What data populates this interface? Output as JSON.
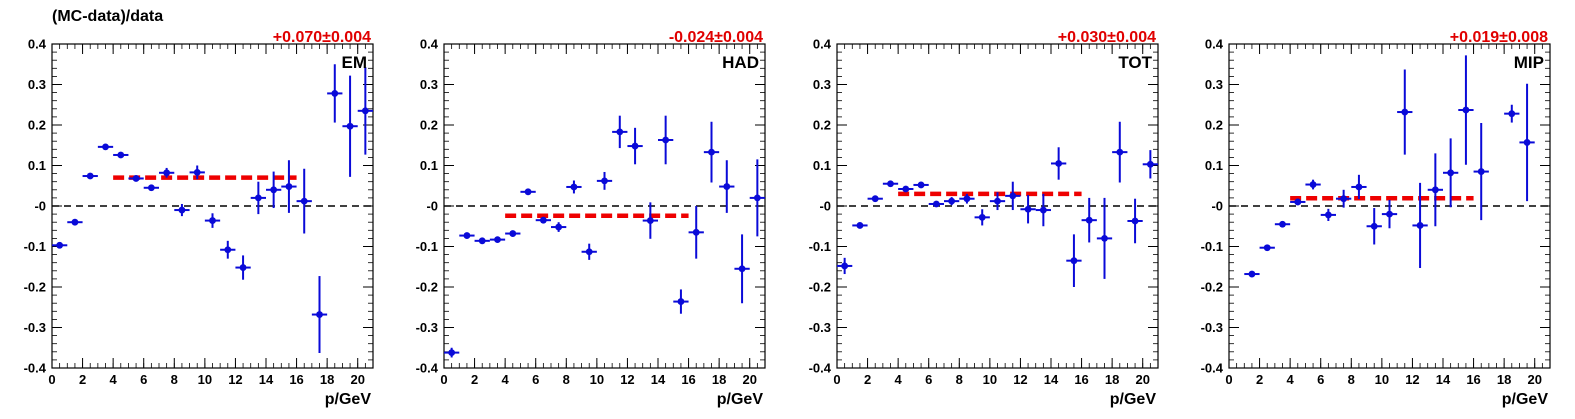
{
  "figure": {
    "ylabel": "(MC-data)/data",
    "colors": {
      "points": "#0a0ad8",
      "fit": "#ee0000",
      "zero_line": "#000000",
      "frame": "#000000"
    }
  },
  "chart_data": [
    {
      "type": "scatter",
      "label": "EM",
      "fit_label": "+0.070±0.004",
      "fit": {
        "value": 0.07,
        "xrange": [
          4,
          16
        ]
      },
      "xlabel": "p/GeV",
      "xlim": [
        0,
        21
      ],
      "ylim": [
        -0.4,
        0.4
      ],
      "xticks": [
        0,
        2,
        4,
        6,
        8,
        10,
        12,
        14,
        16,
        18,
        20
      ],
      "yticks": [
        -0.4,
        -0.3,
        -0.2,
        -0.1,
        0,
        0.1,
        0.2,
        0.3,
        0.4
      ],
      "ytick_labels": [
        "-0.4",
        "-0.3",
        "-0.2",
        "-0.1",
        "-0",
        "0.1",
        "0.2",
        "0.3",
        "0.4"
      ],
      "points": [
        {
          "x": 0.5,
          "y": -0.097,
          "err": 0.008
        },
        {
          "x": 1.5,
          "y": -0.04,
          "err": 0.006
        },
        {
          "x": 2.5,
          "y": 0.074,
          "err": 0.006
        },
        {
          "x": 3.5,
          "y": 0.146,
          "err": 0.005
        },
        {
          "x": 4.5,
          "y": 0.126,
          "err": 0.006
        },
        {
          "x": 5.5,
          "y": 0.068,
          "err": 0.007
        },
        {
          "x": 6.5,
          "y": 0.045,
          "err": 0.008
        },
        {
          "x": 7.5,
          "y": 0.082,
          "err": 0.012
        },
        {
          "x": 8.5,
          "y": -0.01,
          "err": 0.015
        },
        {
          "x": 9.5,
          "y": 0.083,
          "err": 0.017
        },
        {
          "x": 10.5,
          "y": -0.036,
          "err": 0.018
        },
        {
          "x": 11.5,
          "y": -0.108,
          "err": 0.022
        },
        {
          "x": 12.5,
          "y": -0.152,
          "err": 0.03
        },
        {
          "x": 13.5,
          "y": 0.02,
          "err": 0.04
        },
        {
          "x": 14.5,
          "y": 0.04,
          "err": 0.045
        },
        {
          "x": 15.5,
          "y": 0.048,
          "err": 0.065
        },
        {
          "x": 16.5,
          "y": 0.012,
          "err": 0.08
        },
        {
          "x": 17.5,
          "y": -0.268,
          "err": 0.095
        },
        {
          "x": 18.5,
          "y": 0.278,
          "err": 0.072
        },
        {
          "x": 19.5,
          "y": 0.197,
          "err": 0.125
        },
        {
          "x": 20.5,
          "y": 0.235,
          "err": 0.108
        }
      ]
    },
    {
      "type": "scatter",
      "label": "HAD",
      "fit_label": "-0.024±0.004",
      "fit": {
        "value": -0.024,
        "xrange": [
          4,
          16
        ]
      },
      "xlabel": "p/GeV",
      "xlim": [
        0,
        21
      ],
      "ylim": [
        -0.4,
        0.4
      ],
      "xticks": [
        0,
        2,
        4,
        6,
        8,
        10,
        12,
        14,
        16,
        18,
        20
      ],
      "yticks": [
        -0.4,
        -0.3,
        -0.2,
        -0.1,
        0,
        0.1,
        0.2,
        0.3,
        0.4
      ],
      "ytick_labels": [
        "-0.4",
        "-0.3",
        "-0.2",
        "-0.1",
        "-0",
        "0.1",
        "0.2",
        "0.3",
        "0.4"
      ],
      "points": [
        {
          "x": 0.5,
          "y": -0.362,
          "err": 0.012
        },
        {
          "x": 1.5,
          "y": -0.073,
          "err": 0.005
        },
        {
          "x": 2.5,
          "y": -0.086,
          "err": 0.005
        },
        {
          "x": 3.5,
          "y": -0.083,
          "err": 0.005
        },
        {
          "x": 4.5,
          "y": -0.068,
          "err": 0.006
        },
        {
          "x": 5.5,
          "y": 0.035,
          "err": 0.006
        },
        {
          "x": 6.5,
          "y": -0.035,
          "err": 0.008
        },
        {
          "x": 7.5,
          "y": -0.052,
          "err": 0.012
        },
        {
          "x": 8.5,
          "y": 0.047,
          "err": 0.016
        },
        {
          "x": 9.5,
          "y": -0.113,
          "err": 0.02
        },
        {
          "x": 10.5,
          "y": 0.062,
          "err": 0.022
        },
        {
          "x": 11.5,
          "y": 0.183,
          "err": 0.04
        },
        {
          "x": 12.5,
          "y": 0.148,
          "err": 0.045
        },
        {
          "x": 13.5,
          "y": -0.036,
          "err": 0.045
        },
        {
          "x": 14.5,
          "y": 0.163,
          "err": 0.06
        },
        {
          "x": 15.5,
          "y": -0.236,
          "err": 0.03
        },
        {
          "x": 16.5,
          "y": -0.065,
          "err": 0.065
        },
        {
          "x": 17.5,
          "y": 0.133,
          "err": 0.075
        },
        {
          "x": 18.5,
          "y": 0.048,
          "err": 0.065
        },
        {
          "x": 19.5,
          "y": -0.155,
          "err": 0.085
        },
        {
          "x": 20.5,
          "y": 0.02,
          "err": 0.095
        }
      ]
    },
    {
      "type": "scatter",
      "label": "TOT",
      "fit_label": "+0.030±0.004",
      "fit": {
        "value": 0.03,
        "xrange": [
          4,
          16
        ]
      },
      "xlabel": "p/GeV",
      "xlim": [
        0,
        21
      ],
      "ylim": [
        -0.4,
        0.4
      ],
      "xticks": [
        0,
        2,
        4,
        6,
        8,
        10,
        12,
        14,
        16,
        18,
        20
      ],
      "yticks": [
        -0.4,
        -0.3,
        -0.2,
        -0.1,
        0,
        0.1,
        0.2,
        0.3,
        0.4
      ],
      "ytick_labels": [
        "-0.4",
        "-0.3",
        "-0.2",
        "-0.1",
        "-0",
        "0.1",
        "0.2",
        "0.3",
        "0.4"
      ],
      "points": [
        {
          "x": 0.5,
          "y": -0.148,
          "err": 0.02
        },
        {
          "x": 1.5,
          "y": -0.048,
          "err": 0.007
        },
        {
          "x": 2.5,
          "y": 0.018,
          "err": 0.005
        },
        {
          "x": 3.5,
          "y": 0.055,
          "err": 0.005
        },
        {
          "x": 4.5,
          "y": 0.042,
          "err": 0.005
        },
        {
          "x": 5.5,
          "y": 0.052,
          "err": 0.006
        },
        {
          "x": 6.5,
          "y": 0.005,
          "err": 0.007
        },
        {
          "x": 7.5,
          "y": 0.012,
          "err": 0.01
        },
        {
          "x": 8.5,
          "y": 0.018,
          "err": 0.012
        },
        {
          "x": 9.5,
          "y": -0.028,
          "err": 0.02
        },
        {
          "x": 10.5,
          "y": 0.012,
          "err": 0.022
        },
        {
          "x": 11.5,
          "y": 0.025,
          "err": 0.035
        },
        {
          "x": 12.5,
          "y": -0.008,
          "err": 0.035
        },
        {
          "x": 13.5,
          "y": -0.01,
          "err": 0.04
        },
        {
          "x": 14.5,
          "y": 0.105,
          "err": 0.04
        },
        {
          "x": 15.5,
          "y": -0.135,
          "err": 0.065
        },
        {
          "x": 16.5,
          "y": -0.035,
          "err": 0.055
        },
        {
          "x": 17.5,
          "y": -0.08,
          "err": 0.1
        },
        {
          "x": 18.5,
          "y": 0.133,
          "err": 0.075
        },
        {
          "x": 19.5,
          "y": -0.037,
          "err": 0.055
        },
        {
          "x": 20.5,
          "y": 0.103,
          "err": 0.035
        }
      ]
    },
    {
      "type": "scatter",
      "label": "MIP",
      "fit_label": "+0.019±0.008",
      "fit": {
        "value": 0.019,
        "xrange": [
          4,
          16
        ]
      },
      "xlabel": "p/GeV",
      "xlim": [
        0,
        21
      ],
      "ylim": [
        -0.4,
        0.4
      ],
      "xticks": [
        0,
        2,
        4,
        6,
        8,
        10,
        12,
        14,
        16,
        18,
        20
      ],
      "yticks": [
        -0.4,
        -0.3,
        -0.2,
        -0.1,
        0,
        0.1,
        0.2,
        0.3,
        0.4
      ],
      "ytick_labels": [
        "-0.4",
        "-0.3",
        "-0.2",
        "-0.1",
        "-0",
        "0.1",
        "0.2",
        "0.3",
        "0.4"
      ],
      "points": [
        {
          "x": 1.5,
          "y": -0.168,
          "err": 0.006
        },
        {
          "x": 2.5,
          "y": -0.103,
          "err": 0.006
        },
        {
          "x": 3.5,
          "y": -0.045,
          "err": 0.008
        },
        {
          "x": 4.5,
          "y": 0.01,
          "err": 0.008
        },
        {
          "x": 5.5,
          "y": 0.053,
          "err": 0.012
        },
        {
          "x": 6.5,
          "y": -0.022,
          "err": 0.015
        },
        {
          "x": 7.5,
          "y": 0.018,
          "err": 0.022
        },
        {
          "x": 8.5,
          "y": 0.047,
          "err": 0.03
        },
        {
          "x": 9.5,
          "y": -0.05,
          "err": 0.045
        },
        {
          "x": 10.5,
          "y": -0.02,
          "err": 0.035
        },
        {
          "x": 11.5,
          "y": 0.232,
          "err": 0.105
        },
        {
          "x": 12.5,
          "y": -0.048,
          "err": 0.105
        },
        {
          "x": 13.5,
          "y": 0.04,
          "err": 0.09
        },
        {
          "x": 14.5,
          "y": 0.082,
          "err": 0.085
        },
        {
          "x": 15.5,
          "y": 0.237,
          "err": 0.135
        },
        {
          "x": 16.5,
          "y": 0.085,
          "err": 0.12
        },
        {
          "x": 18.5,
          "y": 0.228,
          "err": 0.022
        },
        {
          "x": 19.5,
          "y": 0.157,
          "err": 0.145
        }
      ]
    }
  ]
}
